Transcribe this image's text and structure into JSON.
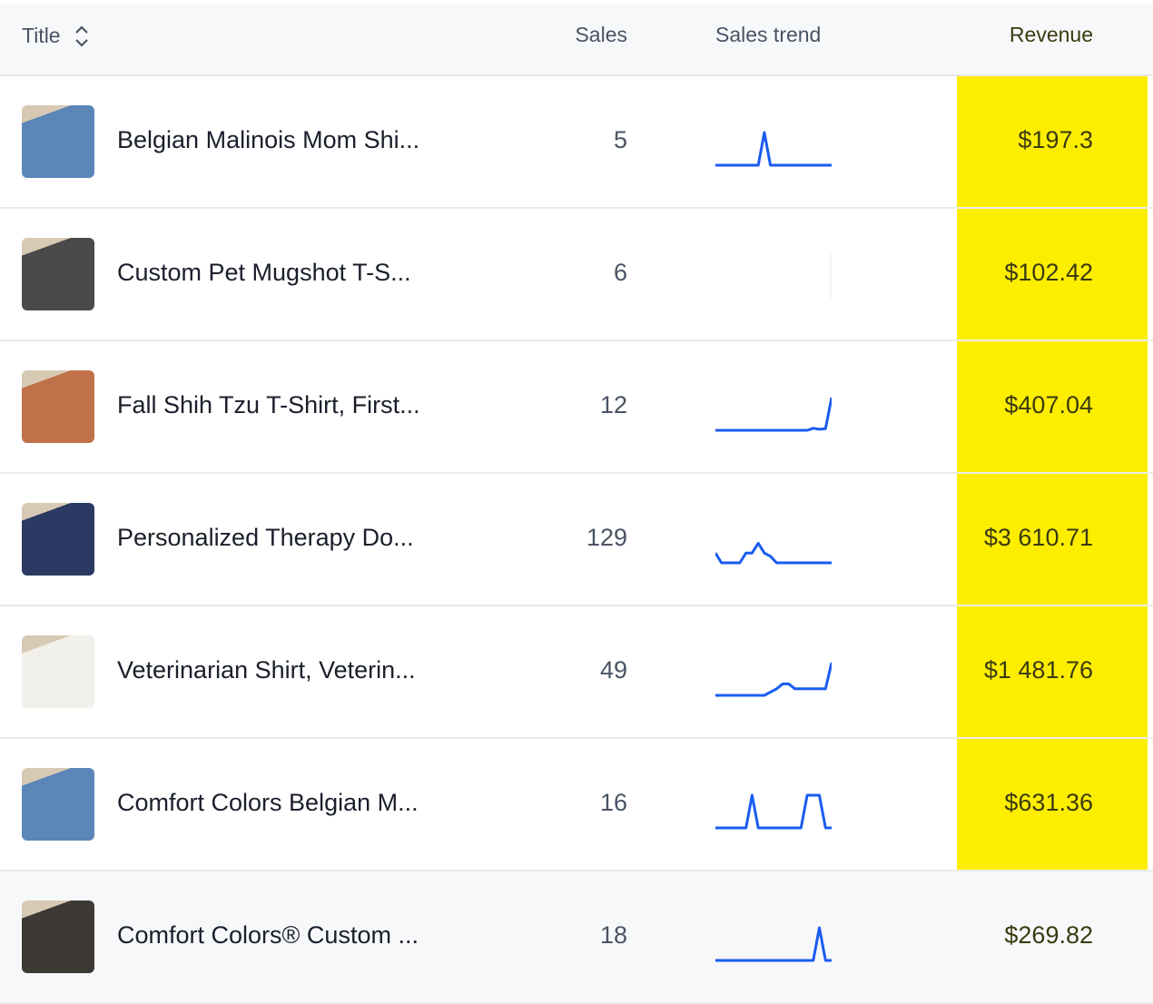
{
  "header": {
    "title": "Title",
    "sales": "Sales",
    "trend": "Sales trend",
    "revenue": "Revenue",
    "sort_icon": "chevron-up-down-icon"
  },
  "highlight_color": "#fdee00",
  "trend_color": "#1a5cf0",
  "rows": [
    {
      "title": "Belgian Malinois Mom Shi...",
      "sales": "5",
      "revenue": "$197.3",
      "thumb_color": "#5b86b8",
      "trend": [
        0,
        0,
        0,
        0,
        0,
        0,
        0,
        0,
        1,
        0,
        0,
        0,
        0,
        0,
        0,
        0,
        0,
        0,
        0,
        0
      ]
    },
    {
      "title": "Custom Pet Mugshot T-S...",
      "sales": "6",
      "revenue": "$102.42",
      "thumb_color": "#4a4a4a",
      "trend": []
    },
    {
      "title": "Fall Shih Tzu T-Shirt, First...",
      "sales": "12",
      "revenue": "$407.04",
      "thumb_color": "#c0714a",
      "trend": [
        0,
        0,
        0,
        0,
        0,
        0,
        0,
        0,
        0,
        0,
        0,
        0,
        0,
        0,
        0,
        0,
        0.06,
        0.03,
        0.05,
        1
      ]
    },
    {
      "title": "Personalized Therapy Do...",
      "sales": "129",
      "revenue": "$3 610.71",
      "thumb_color": "#2b3a63",
      "trend": [
        0.3,
        0,
        0,
        0,
        0,
        0.3,
        0.3,
        0.6,
        0.3,
        0.2,
        0,
        0,
        0,
        0,
        0,
        0,
        0,
        0,
        0,
        0
      ]
    },
    {
      "title": "Veterinarian Shirt, Veterin...",
      "sales": "49",
      "revenue": "$1 481.76",
      "thumb_color": "#f2f0ea",
      "trend": [
        0,
        0,
        0,
        0,
        0,
        0,
        0,
        0,
        0,
        0.1,
        0.2,
        0.35,
        0.35,
        0.2,
        0.2,
        0.2,
        0.2,
        0.2,
        0.2,
        1
      ]
    },
    {
      "title": "Comfort Colors Belgian M...",
      "sales": "16",
      "revenue": "$631.36",
      "thumb_color": "#5b86b8",
      "trend": [
        0,
        0,
        0,
        0,
        0,
        0,
        1,
        0,
        0,
        0,
        0,
        0,
        0,
        0,
        0,
        1,
        1,
        1,
        0,
        0
      ]
    },
    {
      "title": "Comfort Colors® Custom ...",
      "sales": "18",
      "revenue": "$269.82",
      "thumb_color": "#3d3a36",
      "trend": [
        0,
        0,
        0,
        0,
        0,
        0,
        0,
        0,
        0,
        0,
        0,
        0,
        0,
        0,
        0,
        0,
        0,
        1,
        0,
        0
      ]
    }
  ]
}
